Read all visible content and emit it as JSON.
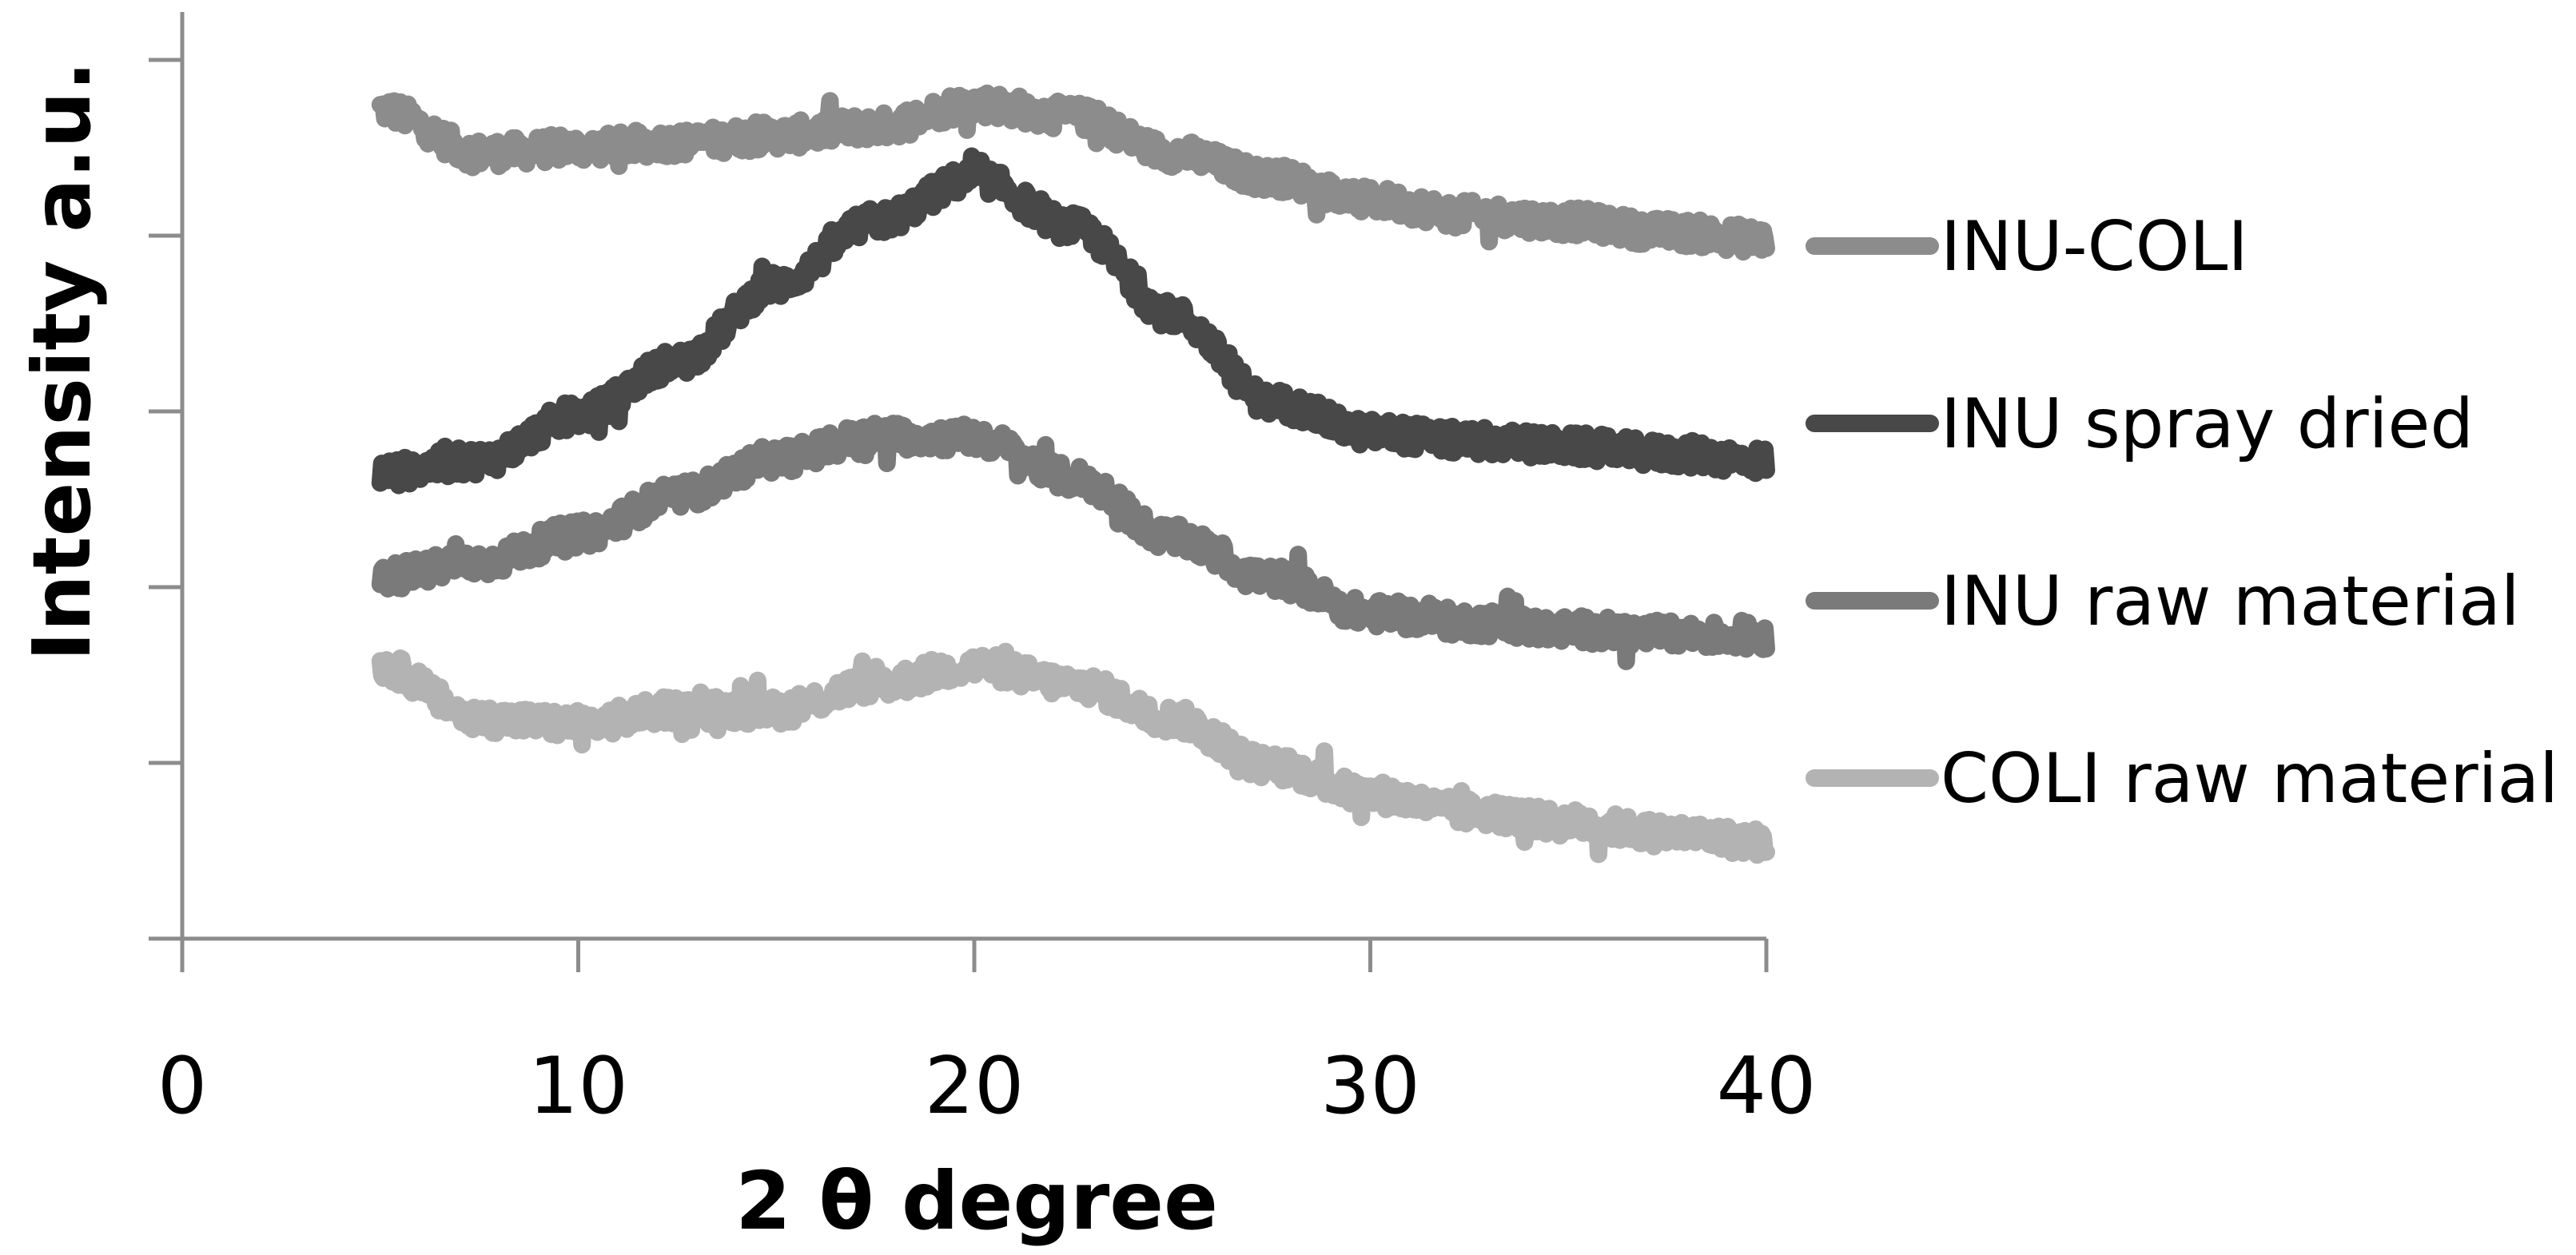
{
  "chart_data": {
    "type": "line",
    "xlabel": "2 θ degree",
    "ylabel": "Intensity a.u.",
    "xlim": [
      0,
      40
    ],
    "ylim": [
      0,
      5
    ],
    "x_ticks": [
      0,
      10,
      20,
      30,
      40
    ],
    "y_tick_marks": [
      0,
      1,
      2,
      3,
      4,
      5
    ],
    "y_tick_labels_shown": false,
    "grid": false,
    "legend_position": "right",
    "x": [
      5,
      7.5,
      10,
      12.5,
      15,
      17.5,
      20,
      22.5,
      25,
      27.5,
      30,
      32.5,
      35,
      37.5,
      40
    ],
    "series": [
      {
        "name": "INU-COLI",
        "color": "#8c8c8c",
        "values": [
          4.72,
          4.47,
          4.5,
          4.53,
          4.57,
          4.62,
          4.75,
          4.68,
          4.47,
          4.33,
          4.2,
          4.12,
          4.08,
          4.02,
          3.98
        ]
      },
      {
        "name": "INU spray dried",
        "color": "#484848",
        "values": [
          2.65,
          2.72,
          2.98,
          3.28,
          3.72,
          4.08,
          4.33,
          4.05,
          3.55,
          3.05,
          2.88,
          2.83,
          2.8,
          2.76,
          2.72
        ]
      },
      {
        "name": "INU raw material",
        "color": "#7a7a7a",
        "values": [
          2.06,
          2.14,
          2.3,
          2.52,
          2.73,
          2.86,
          2.85,
          2.62,
          2.28,
          2.05,
          1.85,
          1.8,
          1.76,
          1.73,
          1.72
        ]
      },
      {
        "name": "COLI raw material",
        "color": "#b3b3b3",
        "values": [
          1.55,
          1.25,
          1.22,
          1.3,
          1.3,
          1.45,
          1.55,
          1.45,
          1.25,
          0.98,
          0.82,
          0.72,
          0.66,
          0.6,
          0.55
        ]
      }
    ]
  }
}
